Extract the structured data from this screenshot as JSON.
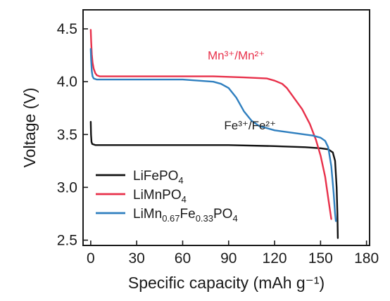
{
  "chart_data": {
    "type": "line",
    "title": "",
    "xlabel": "Specific capacity (mAh g⁻¹)",
    "ylabel": "Voltage (V)",
    "xlim": [
      -5,
      182
    ],
    "ylim": [
      2.45,
      4.68
    ],
    "xticks": [
      0,
      30,
      60,
      90,
      120,
      150,
      180
    ],
    "yticks": [
      2.5,
      3.0,
      3.5,
      4.0,
      4.5
    ],
    "xtick_labels": [
      "0",
      "30",
      "60",
      "90",
      "120",
      "150",
      "180"
    ],
    "ytick_labels": [
      "2.5",
      "3.0",
      "3.5",
      "4.0",
      "4.5"
    ],
    "legend_placement": "bottom-left",
    "grid": false,
    "annotations": [
      {
        "text": "Mn³⁺/Mn²⁺",
        "x": 95,
        "y": 4.21,
        "color": "#e8304a"
      },
      {
        "text": "Fe³⁺/Fe²⁺",
        "x": 104,
        "y": 3.55,
        "color": "#1a1a1a"
      }
    ],
    "series": [
      {
        "name": "LiFePO₄",
        "legend_label": {
          "main": "LiFePO",
          "subs": [
            [
              "4",
              "sub"
            ]
          ]
        },
        "color": "#111111",
        "x": [
          0,
          0.2,
          0.5,
          1,
          3,
          10,
          30,
          60,
          90,
          120,
          140,
          150,
          155,
          158,
          159.5,
          160.5,
          161,
          161.3
        ],
        "y": [
          3.62,
          3.5,
          3.43,
          3.41,
          3.4,
          3.4,
          3.4,
          3.4,
          3.4,
          3.39,
          3.38,
          3.37,
          3.36,
          3.33,
          3.25,
          3.0,
          2.75,
          2.52
        ]
      },
      {
        "name": "LiMnPO₄",
        "legend_label": {
          "main": "LiMnPO",
          "subs": [
            [
              "4",
              "sub"
            ]
          ]
        },
        "color": "#e8304a",
        "x": [
          0,
          0.3,
          0.7,
          1.2,
          2,
          3,
          4,
          6,
          10,
          20,
          40,
          60,
          80,
          100,
          115,
          120,
          125,
          128,
          132,
          138,
          143,
          147,
          150,
          153,
          155,
          156.5,
          157
        ],
        "y": [
          4.49,
          4.38,
          4.26,
          4.18,
          4.12,
          4.08,
          4.06,
          4.05,
          4.05,
          4.05,
          4.05,
          4.05,
          4.05,
          4.04,
          4.03,
          4.01,
          3.98,
          3.94,
          3.86,
          3.74,
          3.6,
          3.45,
          3.3,
          3.1,
          2.9,
          2.75,
          2.7
        ]
      },
      {
        "name": "LiMn₀.₆₇Fe₀.₃₃PO₄",
        "legend_label": {
          "main": "LiMn",
          "subs": [
            [
              "0.67",
              "sub"
            ],
            [
              "Fe",
              "normal"
            ],
            [
              "0.33",
              "sub"
            ],
            [
              "PO",
              "normal"
            ],
            [
              "4",
              "sub"
            ]
          ]
        },
        "color": "#2f7fbf",
        "x": [
          0,
          0.3,
          0.7,
          1.2,
          2,
          4,
          10,
          30,
          60,
          80,
          85,
          90,
          95,
          100,
          105,
          110,
          120,
          135,
          145,
          150,
          153,
          155,
          157,
          158.5,
          159.5,
          160
        ],
        "y": [
          4.31,
          4.2,
          4.1,
          4.05,
          4.03,
          4.02,
          4.02,
          4.02,
          4.02,
          4.0,
          3.98,
          3.94,
          3.85,
          3.72,
          3.63,
          3.58,
          3.54,
          3.51,
          3.49,
          3.47,
          3.44,
          3.38,
          3.2,
          2.95,
          2.75,
          2.68
        ]
      }
    ]
  }
}
